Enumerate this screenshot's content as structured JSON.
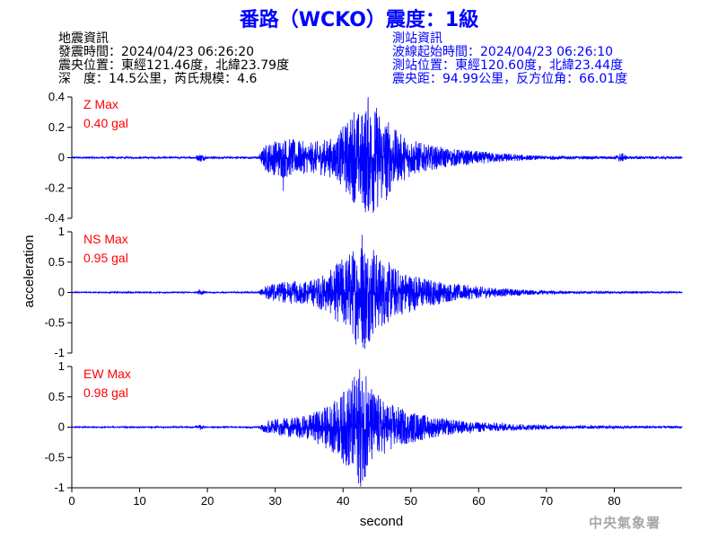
{
  "title": "番路（WCKO）震度：1級",
  "earthquake_info": {
    "heading": "地震資訊",
    "time": "發震時間：2024/04/23 06:26:20",
    "location": "震央位置：東經121.46度，北緯23.79度",
    "depth_magnitude": "深　度：14.5公里，芮氏規模：4.6"
  },
  "station_info": {
    "heading": "測站資訊",
    "wave_start": "波線起始時間：2024/04/23 06:26:10",
    "location": "測站位置：東經120.60度，北緯23.44度",
    "distance": "震央距：94.99公里，反方位角：66.01度"
  },
  "credit": "中央氣象署",
  "colors": {
    "trace": "#0000ff",
    "max_label": "#ff0000",
    "title": "#0000ff",
    "station_info": "#0000ff"
  },
  "chart_data": {
    "type": "line",
    "xlabel": "second",
    "ylabel": "acceleration",
    "xlim": [
      0,
      90
    ],
    "xticks": [
      0,
      10,
      20,
      30,
      40,
      50,
      60,
      70,
      80
    ],
    "grid": false,
    "panels": [
      {
        "name": "Z Max",
        "max_value": "0.40 gal",
        "ylim": [
          -0.4,
          0.4
        ],
        "yticks": [
          -0.4,
          -0.2,
          0,
          0.2,
          0.4
        ],
        "ytick_labels": [
          "-0.4",
          "-0.2",
          "0",
          "0.2",
          "0.4"
        ],
        "envelope": [
          [
            0,
            0.006
          ],
          [
            18,
            0.006
          ],
          [
            19,
            0.03
          ],
          [
            20,
            0.006
          ],
          [
            27.5,
            0.008
          ],
          [
            28.5,
            0.09
          ],
          [
            31,
            0.14
          ],
          [
            35,
            0.1
          ],
          [
            39,
            0.14
          ],
          [
            41,
            0.28
          ],
          [
            43,
            0.34
          ],
          [
            44,
            0.4
          ],
          [
            46,
            0.3
          ],
          [
            48,
            0.17
          ],
          [
            52,
            0.09
          ],
          [
            56,
            0.06
          ],
          [
            62,
            0.035
          ],
          [
            68,
            0.015
          ],
          [
            72,
            0.012
          ],
          [
            80,
            0.01
          ],
          [
            81,
            0.035
          ],
          [
            82,
            0.01
          ],
          [
            90,
            0.007
          ]
        ],
        "peaks": [
          {
            "x": 43.7,
            "y": 0.4
          },
          {
            "x": 43.3,
            "y": -0.36
          },
          {
            "x": 41.6,
            "y": 0.3
          },
          {
            "x": 42.6,
            "y": -0.24
          },
          {
            "x": 31.2,
            "y": -0.22
          },
          {
            "x": 46.4,
            "y": -0.28
          }
        ]
      },
      {
        "name": "NS Max",
        "max_value": "0.95 gal",
        "ylim": [
          -1,
          1
        ],
        "yticks": [
          -1,
          -0.5,
          0,
          0.5,
          1
        ],
        "ytick_labels": [
          "-1",
          "-0.5",
          "0",
          "0.5",
          "1"
        ],
        "envelope": [
          [
            0,
            0.01
          ],
          [
            18,
            0.01
          ],
          [
            19,
            0.05
          ],
          [
            20,
            0.01
          ],
          [
            27.5,
            0.012
          ],
          [
            28.5,
            0.1
          ],
          [
            31,
            0.18
          ],
          [
            35,
            0.2
          ],
          [
            38,
            0.35
          ],
          [
            40,
            0.6
          ],
          [
            42,
            0.8
          ],
          [
            43,
            0.95
          ],
          [
            45,
            0.65
          ],
          [
            48,
            0.4
          ],
          [
            52,
            0.25
          ],
          [
            56,
            0.15
          ],
          [
            62,
            0.08
          ],
          [
            68,
            0.04
          ],
          [
            75,
            0.02
          ],
          [
            90,
            0.015
          ]
        ],
        "peaks": [
          {
            "x": 42.8,
            "y": 0.95
          },
          {
            "x": 43.2,
            "y": -0.93
          },
          {
            "x": 41.9,
            "y": -0.86
          },
          {
            "x": 44.5,
            "y": 0.7
          }
        ]
      },
      {
        "name": "EW Max",
        "max_value": "0.98 gal",
        "ylim": [
          -1,
          1
        ],
        "yticks": [
          -1,
          -0.5,
          0,
          0.5,
          1
        ],
        "ytick_labels": [
          "-1",
          "-0.5",
          "0",
          "0.5",
          "1"
        ],
        "envelope": [
          [
            0,
            0.01
          ],
          [
            18,
            0.01
          ],
          [
            19,
            0.05
          ],
          [
            20,
            0.01
          ],
          [
            27.5,
            0.012
          ],
          [
            28.5,
            0.1
          ],
          [
            31,
            0.15
          ],
          [
            35,
            0.2
          ],
          [
            39,
            0.45
          ],
          [
            41,
            0.75
          ],
          [
            42.5,
            0.98
          ],
          [
            44,
            0.7
          ],
          [
            46,
            0.45
          ],
          [
            49,
            0.3
          ],
          [
            53,
            0.18
          ],
          [
            58,
            0.1
          ],
          [
            65,
            0.06
          ],
          [
            72,
            0.03
          ],
          [
            90,
            0.02
          ]
        ],
        "peaks": [
          {
            "x": 42.6,
            "y": -0.98
          },
          {
            "x": 42.3,
            "y": 0.8
          },
          {
            "x": 43.4,
            "y": 0.84
          },
          {
            "x": 41.5,
            "y": -0.6
          }
        ]
      }
    ]
  }
}
